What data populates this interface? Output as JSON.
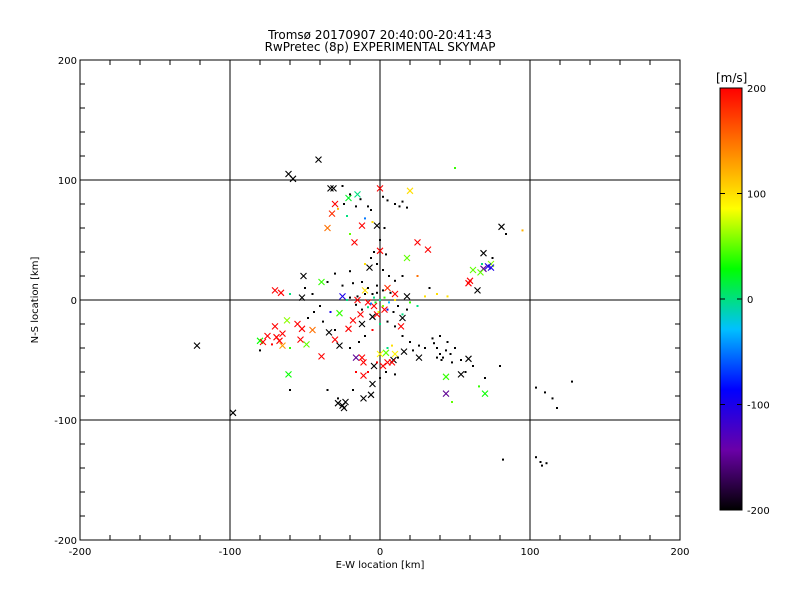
{
  "chart_data": {
    "type": "scatter",
    "title": "Tromsø 20170907 20:40:00-20:41:43",
    "subtitle": "RwPretec (8p) EXPERIMENTAL SKYMAP",
    "xlabel": "E-W location [km]",
    "ylabel": "N-S location [km]",
    "xlim": [
      -200,
      200
    ],
    "ylim": [
      -200,
      200
    ],
    "xticks": [
      "-200",
      "-100",
      "0",
      "100",
      "200"
    ],
    "yticks": [
      "-200",
      "-100",
      "0",
      "100",
      "200"
    ],
    "grid_lines": [
      -100,
      0,
      100
    ],
    "colorbar": {
      "label": "[m/s]",
      "range": [
        -200,
        200
      ],
      "ticks": [
        "200",
        "100",
        "0",
        "-100",
        "-200"
      ],
      "colormap": [
        "#000000",
        "#6a00a8",
        "#0000ff",
        "#00c0ff",
        "#00ff00",
        "#ffff00",
        "#ff8000",
        "#ff0000"
      ]
    },
    "series": [
      {
        "marker": "x",
        "points": [
          [
            -41,
            117,
            -200
          ],
          [
            -61,
            105,
            -200
          ],
          [
            -58,
            101,
            -200
          ],
          [
            -33,
            93,
            -200
          ],
          [
            -31,
            93,
            -200
          ],
          [
            0,
            93,
            200
          ],
          [
            20,
            91,
            100
          ],
          [
            -15,
            88,
            0
          ],
          [
            -21,
            85,
            20
          ],
          [
            -32,
            72,
            180
          ],
          [
            -12,
            62,
            200
          ],
          [
            -2,
            62,
            -200
          ],
          [
            -17,
            48,
            200
          ],
          [
            25,
            48,
            200
          ],
          [
            32,
            42,
            200
          ],
          [
            0,
            41,
            200
          ],
          [
            18,
            35,
            50
          ],
          [
            69,
            39,
            -200
          ],
          [
            81,
            61,
            -200
          ],
          [
            74,
            30,
            60
          ],
          [
            62,
            25,
            50
          ],
          [
            72,
            28,
            -100
          ],
          [
            74,
            27,
            -100
          ],
          [
            69,
            26,
            -150
          ],
          [
            67,
            23,
            50
          ],
          [
            -7,
            27,
            -200
          ],
          [
            60,
            16,
            200
          ],
          [
            59,
            14,
            200
          ],
          [
            65,
            8,
            -200
          ],
          [
            -51,
            20,
            -200
          ],
          [
            -39,
            15,
            40
          ],
          [
            -10,
            8,
            100
          ],
          [
            -25,
            3,
            -100
          ],
          [
            -70,
            8,
            200
          ],
          [
            -66,
            6,
            200
          ],
          [
            -52,
            2,
            -200
          ],
          [
            10,
            5,
            200
          ],
          [
            18,
            3,
            -200
          ],
          [
            -8,
            -2,
            200
          ],
          [
            -4,
            -5,
            200
          ],
          [
            3,
            -8,
            200
          ],
          [
            -13,
            -12,
            200
          ],
          [
            -2,
            -12,
            200
          ],
          [
            -18,
            -17,
            200
          ],
          [
            -27,
            -11,
            40
          ],
          [
            -21,
            -24,
            200
          ],
          [
            -12,
            -20,
            -200
          ],
          [
            -5,
            -14,
            -200
          ],
          [
            14,
            -22,
            200
          ],
          [
            -62,
            -17,
            60
          ],
          [
            -55,
            -20,
            200
          ],
          [
            -52,
            -24,
            200
          ],
          [
            -70,
            -22,
            200
          ],
          [
            -65,
            -28,
            200
          ],
          [
            -75,
            -30,
            200
          ],
          [
            -80,
            -34,
            30
          ],
          [
            -78,
            -35,
            200
          ],
          [
            -67,
            -34,
            200
          ],
          [
            -65,
            -38,
            130
          ],
          [
            -69,
            -31,
            200
          ],
          [
            -49,
            -37,
            50
          ],
          [
            -53,
            -33,
            200
          ],
          [
            -30,
            -33,
            200
          ],
          [
            -34,
            -27,
            -200
          ],
          [
            -27,
            -38,
            -200
          ],
          [
            -39,
            -47,
            200
          ],
          [
            -16,
            -48,
            -150
          ],
          [
            -12,
            -48,
            200
          ],
          [
            -11,
            -52,
            200
          ],
          [
            5,
            -52,
            200
          ],
          [
            4,
            -44,
            50
          ],
          [
            9,
            -50,
            -200
          ],
          [
            2,
            -55,
            200
          ],
          [
            8,
            -52,
            200
          ],
          [
            0,
            -45,
            90
          ],
          [
            10,
            -45,
            90
          ],
          [
            16,
            -43,
            -200
          ],
          [
            26,
            -48,
            -200
          ],
          [
            -4,
            -55,
            -200
          ],
          [
            -5,
            -70,
            -200
          ],
          [
            -11,
            -63,
            200
          ],
          [
            -6,
            -79,
            -200
          ],
          [
            -11,
            -82,
            -200
          ],
          [
            -28,
            -86,
            -200
          ],
          [
            -25,
            -88,
            -200
          ],
          [
            -24,
            -90,
            -200
          ],
          [
            -23,
            -85,
            -200
          ],
          [
            -61,
            -62,
            30
          ],
          [
            -98,
            -94,
            -200
          ],
          [
            -122,
            -38,
            -200
          ],
          [
            44,
            -64,
            40
          ],
          [
            44,
            -78,
            -150
          ],
          [
            54,
            -62,
            -200
          ],
          [
            70,
            -78,
            30
          ],
          [
            59,
            -49,
            -200
          ],
          [
            15,
            -15,
            -200
          ],
          [
            -45,
            -25,
            150
          ],
          [
            -30,
            80,
            200
          ],
          [
            -35,
            60,
            150
          ],
          [
            5,
            10,
            180
          ],
          [
            -15,
            0,
            200
          ]
        ]
      },
      {
        "marker": "dot",
        "points": [
          [
            -25,
            95,
            -200
          ],
          [
            -20,
            88,
            -200
          ],
          [
            -13,
            84,
            -200
          ],
          [
            -16,
            78,
            -200
          ],
          [
            -8,
            78,
            -200
          ],
          [
            -6,
            75,
            -200
          ],
          [
            2,
            86,
            -200
          ],
          [
            5,
            83,
            -200
          ],
          [
            10,
            80,
            -200
          ],
          [
            13,
            78,
            -200
          ],
          [
            15,
            82,
            -200
          ],
          [
            18,
            77,
            -200
          ],
          [
            -24,
            80,
            -200
          ],
          [
            -28,
            76,
            120
          ],
          [
            -22,
            70,
            0
          ],
          [
            -10,
            68,
            -50
          ],
          [
            -5,
            65,
            100
          ],
          [
            3,
            60,
            -200
          ],
          [
            0,
            50,
            -200
          ],
          [
            -4,
            40,
            -200
          ],
          [
            -6,
            35,
            -200
          ],
          [
            4,
            38,
            -200
          ],
          [
            -2,
            30,
            -200
          ],
          [
            2,
            25,
            -200
          ],
          [
            6,
            20,
            -200
          ],
          [
            10,
            16,
            -200
          ],
          [
            15,
            20,
            -200
          ],
          [
            -20,
            24,
            -200
          ],
          [
            -30,
            22,
            -200
          ],
          [
            -35,
            15,
            -200
          ],
          [
            -25,
            12,
            -200
          ],
          [
            -18,
            14,
            -200
          ],
          [
            -12,
            15,
            -200
          ],
          [
            -8,
            10,
            -200
          ],
          [
            -2,
            12,
            -200
          ],
          [
            2,
            8,
            -200
          ],
          [
            -5,
            5,
            -200
          ],
          [
            -10,
            5,
            -200
          ],
          [
            -15,
            3,
            -200
          ],
          [
            -20,
            2,
            -200
          ],
          [
            -4,
            2,
            0
          ],
          [
            0,
            0,
            0
          ],
          [
            3,
            2,
            40
          ],
          [
            -3,
            -2,
            20
          ],
          [
            -6,
            -3,
            -50
          ],
          [
            6,
            -2,
            -30
          ],
          [
            -8,
            -6,
            0
          ],
          [
            2,
            -5,
            60
          ],
          [
            5,
            -8,
            -100
          ],
          [
            -1,
            -10,
            80
          ],
          [
            9,
            -10,
            -200
          ],
          [
            12,
            -5,
            -200
          ],
          [
            -12,
            -8,
            -200
          ],
          [
            15,
            -12,
            0
          ],
          [
            18,
            -8,
            -200
          ],
          [
            -16,
            -4,
            -200
          ],
          [
            20,
            -2,
            40
          ],
          [
            25,
            -5,
            0
          ],
          [
            -22,
            0,
            0
          ],
          [
            10,
            0,
            100
          ],
          [
            -2,
            6,
            -200
          ],
          [
            7,
            6,
            -200
          ],
          [
            30,
            3,
            100
          ],
          [
            38,
            5,
            100
          ],
          [
            45,
            3,
            100
          ],
          [
            -44,
            -10,
            -200
          ],
          [
            -48,
            -15,
            -200
          ],
          [
            -38,
            -18,
            -200
          ],
          [
            -30,
            -25,
            -200
          ],
          [
            -40,
            -5,
            -200
          ],
          [
            -60,
            -40,
            40
          ],
          [
            -80,
            -42,
            -200
          ],
          [
            -72,
            -37,
            200
          ],
          [
            -60,
            -75,
            -200
          ],
          [
            -35,
            -75,
            -200
          ],
          [
            -28,
            -82,
            -200
          ],
          [
            -18,
            -75,
            -200
          ],
          [
            -16,
            -60,
            200
          ],
          [
            -8,
            -60,
            200
          ],
          [
            -20,
            -40,
            -200
          ],
          [
            -14,
            -35,
            -200
          ],
          [
            -10,
            -30,
            -200
          ],
          [
            -5,
            -25,
            200
          ],
          [
            0,
            -20,
            0
          ],
          [
            5,
            -18,
            -200
          ],
          [
            10,
            -22,
            -200
          ],
          [
            15,
            -30,
            -200
          ],
          [
            20,
            -35,
            -200
          ],
          [
            26,
            -38,
            -200
          ],
          [
            30,
            -40,
            -200
          ],
          [
            22,
            -42,
            -200
          ],
          [
            36,
            -36,
            -200
          ],
          [
            38,
            -40,
            -200
          ],
          [
            40,
            -45,
            -200
          ],
          [
            42,
            -48,
            -200
          ],
          [
            44,
            -42,
            -200
          ],
          [
            47,
            -45,
            -200
          ],
          [
            50,
            -40,
            -200
          ],
          [
            38,
            -48,
            -200
          ],
          [
            35,
            -32,
            -200
          ],
          [
            40,
            -30,
            -200
          ],
          [
            45,
            -35,
            -200
          ],
          [
            41,
            -50,
            -200
          ],
          [
            48,
            -52,
            -200
          ],
          [
            5,
            -40,
            0
          ],
          [
            8,
            -38,
            100
          ],
          [
            12,
            -48,
            -200
          ],
          [
            -2,
            -52,
            200
          ],
          [
            4,
            -60,
            -200
          ],
          [
            10,
            -62,
            -200
          ],
          [
            0,
            -65,
            -200
          ],
          [
            54,
            -50,
            -200
          ],
          [
            57,
            -60,
            -200
          ],
          [
            48,
            -85,
            50
          ],
          [
            66,
            -72,
            40
          ],
          [
            62,
            -55,
            -200
          ],
          [
            70,
            -65,
            -200
          ],
          [
            80,
            -55,
            -200
          ],
          [
            104,
            -73,
            -200
          ],
          [
            110,
            -77,
            -200
          ],
          [
            115,
            -82,
            -200
          ],
          [
            118,
            -90,
            -200
          ],
          [
            128,
            -68,
            -200
          ],
          [
            104,
            -131,
            -200
          ],
          [
            107,
            -135,
            -200
          ],
          [
            108,
            -138,
            -200
          ],
          [
            111,
            -136,
            -200
          ],
          [
            82,
            -133,
            -200
          ],
          [
            84,
            55,
            -200
          ],
          [
            50,
            110,
            40
          ],
          [
            95,
            58,
            120
          ],
          [
            75,
            35,
            -200
          ],
          [
            68,
            30,
            0
          ],
          [
            -10,
            30,
            100
          ],
          [
            -20,
            55,
            50
          ],
          [
            25,
            20,
            150
          ],
          [
            33,
            10,
            -200
          ],
          [
            -50,
            10,
            -200
          ],
          [
            -60,
            5,
            0
          ],
          [
            -45,
            5,
            -200
          ],
          [
            -33,
            -10,
            -100
          ]
        ]
      }
    ]
  }
}
